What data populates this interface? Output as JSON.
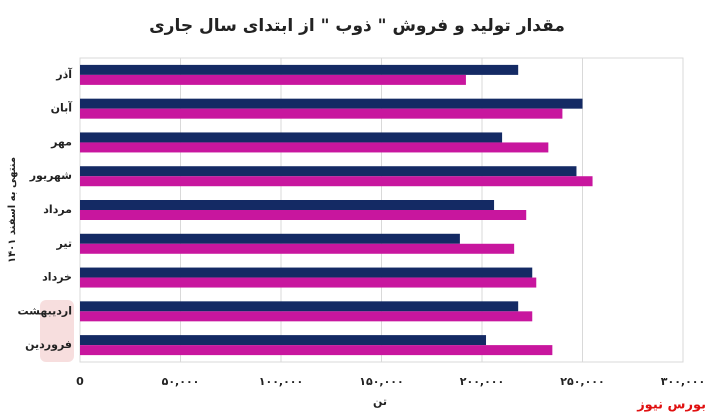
{
  "chart_data": {
    "type": "hbar",
    "title": "مقدار تولید و فروش \" ذوب \" از ابتدای سال جاری",
    "y_label": "منتهی به اسفند ۱۴۰۱",
    "x_label": "تن",
    "watermark": "بورس نیوز",
    "categories": [
      "آذر",
      "آبان",
      "مهر",
      "شهریور",
      "مرداد",
      "تیر",
      "خرداد",
      "اردیبهشت",
      "فروردین"
    ],
    "series": [
      {
        "color": "#142a64",
        "values": [
          218000,
          250000,
          210000,
          247000,
          206000,
          189000,
          225000,
          218000,
          202000
        ]
      },
      {
        "color": "#c8169e",
        "values": [
          192000,
          240000,
          233000,
          255000,
          222000,
          216000,
          227000,
          225000,
          235000
        ]
      }
    ],
    "xlim": [
      0,
      300000
    ],
    "xticks": [
      0,
      {
        "value": 50000,
        "label": "۵۰,۰۰۰"
      },
      {
        "value": 100000,
        "label": "۱۰۰,۰۰۰"
      },
      {
        "value": 150000,
        "label": "۱۵۰,۰۰۰"
      },
      {
        "value": 200000,
        "label": "۲۰۰,۰۰۰"
      },
      {
        "value": 250000,
        "label": "۲۵۰,۰۰۰"
      },
      {
        "value": 300000,
        "label": "۳۰۰,۰۰۰"
      }
    ],
    "grid": true
  }
}
